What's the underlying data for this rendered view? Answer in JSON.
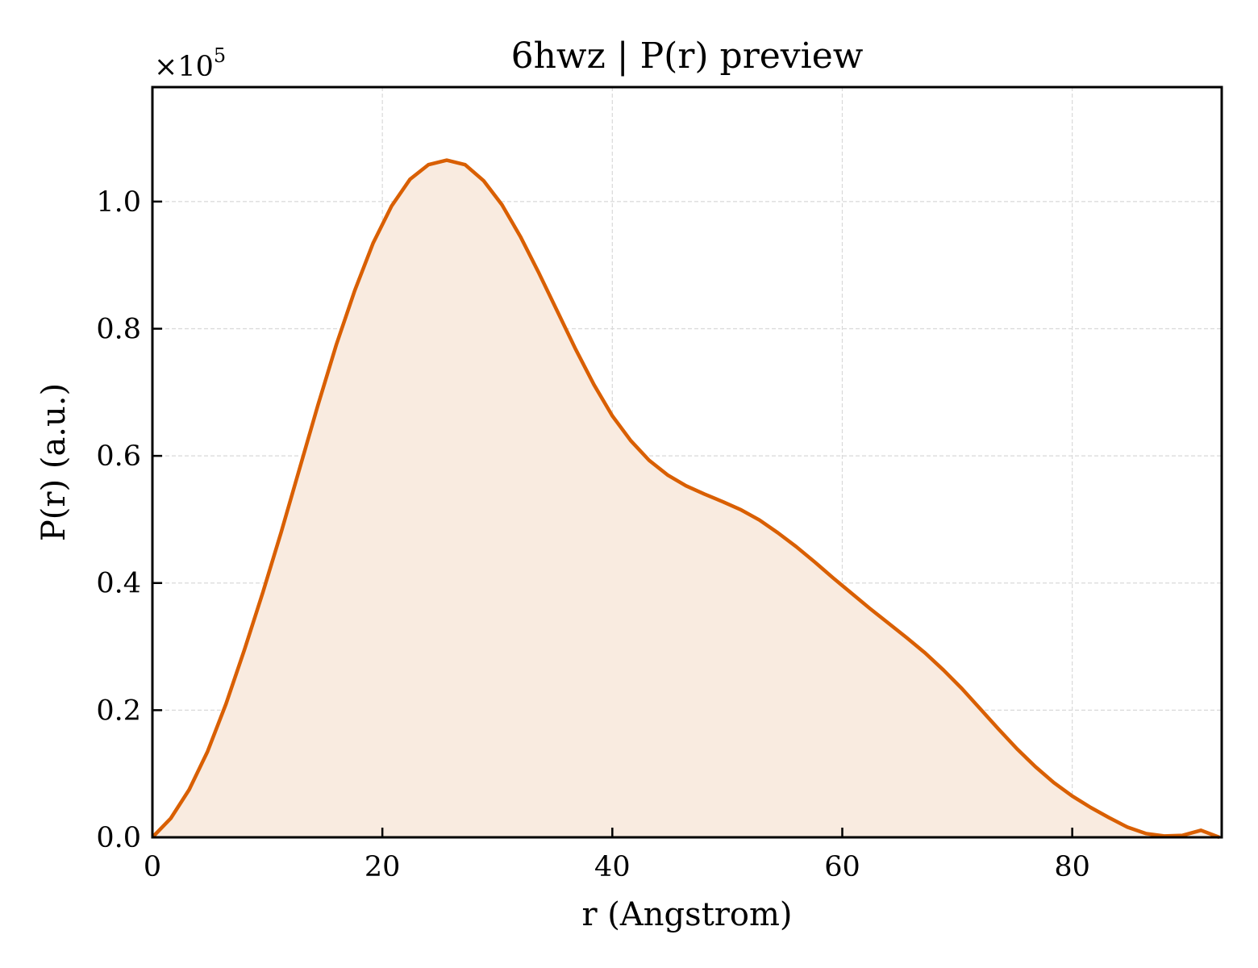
{
  "chart_data": {
    "type": "area",
    "title": "6hwz | P(r) preview",
    "xlabel": "r (Angstrom)",
    "ylabel": "P(r) (a.u.)",
    "y_offset_label": "×10",
    "y_offset_exponent": "5",
    "xlim": [
      0,
      93
    ],
    "ylim": [
      0,
      1.18
    ],
    "y_scale_factor": 100000,
    "x_ticks": [
      0,
      20,
      40,
      60,
      80
    ],
    "x_tick_labels": [
      "0",
      "20",
      "40",
      "60",
      "80"
    ],
    "y_ticks": [
      0,
      0.2,
      0.4,
      0.6,
      0.8,
      1.0
    ],
    "y_tick_labels": [
      "0.0",
      "0.2",
      "0.4",
      "0.6",
      "0.8",
      "1.0"
    ],
    "grid": true,
    "line_color": "#d95f02",
    "fill_color": "#f9ebe0",
    "x": [
      0,
      1.6,
      3.2,
      4.8,
      6.4,
      8.0,
      9.6,
      11.2,
      12.8,
      14.4,
      16.0,
      17.6,
      19.2,
      20.8,
      22.4,
      24.0,
      25.6,
      27.2,
      28.8,
      30.4,
      32.0,
      33.6,
      35.2,
      36.8,
      38.4,
      40.0,
      41.6,
      43.2,
      44.8,
      46.4,
      48.0,
      49.6,
      51.2,
      52.8,
      54.4,
      56.0,
      57.6,
      59.2,
      60.8,
      62.4,
      64.0,
      65.6,
      67.2,
      68.8,
      70.4,
      72.0,
      73.6,
      75.2,
      76.8,
      78.4,
      80.0,
      81.6,
      83.2,
      84.8,
      86.4,
      88.0,
      89.6,
      91.2,
      92.8
    ],
    "series": [
      {
        "values": [
          0.0,
          0.03,
          0.075,
          0.135,
          0.21,
          0.295,
          0.385,
          0.48,
          0.58,
          0.68,
          0.775,
          0.86,
          0.935,
          0.993,
          1.035,
          1.058,
          1.065,
          1.058,
          1.033,
          0.995,
          0.945,
          0.888,
          0.828,
          0.768,
          0.712,
          0.663,
          0.624,
          0.593,
          0.57,
          0.553,
          0.54,
          0.528,
          0.515,
          0.499,
          0.479,
          0.457,
          0.433,
          0.408,
          0.384,
          0.36,
          0.337,
          0.314,
          0.29,
          0.263,
          0.234,
          0.202,
          0.17,
          0.139,
          0.111,
          0.086,
          0.065,
          0.047,
          0.031,
          0.016,
          0.006,
          0.002,
          0.003,
          0.011,
          0.0
        ]
      }
    ]
  }
}
